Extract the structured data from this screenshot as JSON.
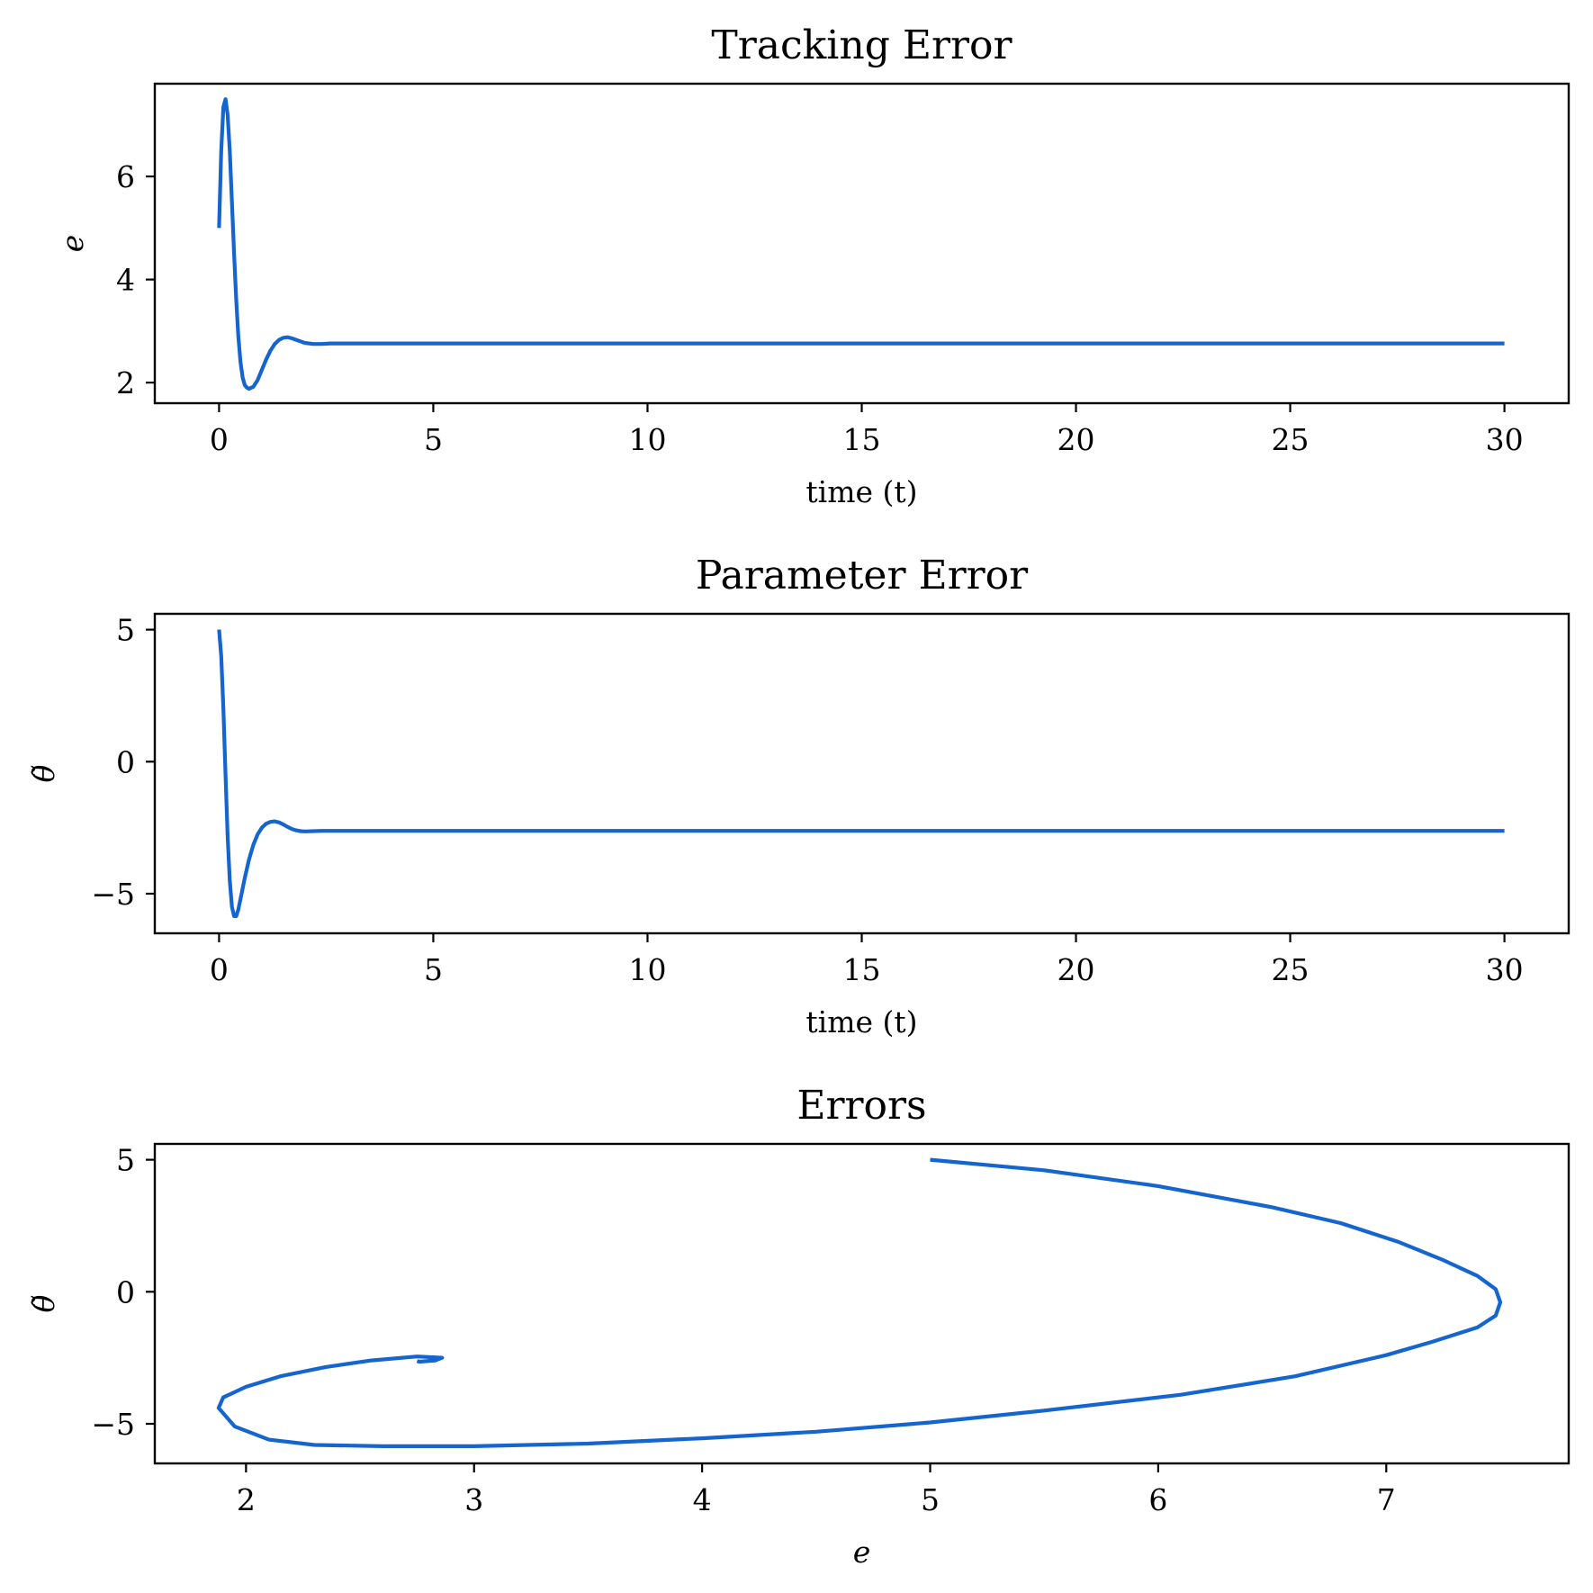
{
  "chart_data": [
    {
      "type": "line",
      "title": "Tracking Error",
      "xlabel": "time (t)",
      "ylabel": "e",
      "xlim": [
        -1.5,
        31.5
      ],
      "ylim": [
        1.6,
        7.8
      ],
      "xticks": [
        0,
        5,
        10,
        15,
        20,
        25,
        30
      ],
      "xtick_labels": [
        "0",
        "5",
        "10",
        "15",
        "20",
        "25",
        "30"
      ],
      "yticks": [
        2,
        4,
        6
      ],
      "ytick_labels": [
        "2",
        "4",
        "6"
      ],
      "grid": false,
      "series": [
        {
          "color": "#1565d0",
          "x": [
            0,
            0.05,
            0.1,
            0.15,
            0.2,
            0.25,
            0.3,
            0.35,
            0.4,
            0.45,
            0.5,
            0.55,
            0.6,
            0.65,
            0.7,
            0.8,
            0.9,
            1.0,
            1.1,
            1.2,
            1.3,
            1.4,
            1.5,
            1.6,
            1.7,
            1.8,
            1.9,
            2.0,
            2.2,
            2.4,
            2.6,
            2.8,
            3.0,
            4,
            5,
            6,
            7,
            8,
            9,
            10,
            12,
            14,
            16,
            18,
            20,
            22,
            24,
            26,
            28,
            30
          ],
          "y": [
            5.0,
            6.5,
            7.35,
            7.5,
            7.2,
            6.5,
            5.5,
            4.5,
            3.6,
            2.9,
            2.4,
            2.1,
            1.95,
            1.9,
            1.88,
            1.92,
            2.05,
            2.25,
            2.45,
            2.62,
            2.75,
            2.83,
            2.87,
            2.88,
            2.86,
            2.83,
            2.8,
            2.77,
            2.75,
            2.75,
            2.76,
            2.76,
            2.76,
            2.76,
            2.76,
            2.76,
            2.76,
            2.76,
            2.76,
            2.76,
            2.76,
            2.76,
            2.76,
            2.76,
            2.76,
            2.76,
            2.76,
            2.76,
            2.76,
            2.76
          ]
        }
      ]
    },
    {
      "type": "line",
      "title": "Parameter Error",
      "xlabel": "time (t)",
      "ylabel": "θ̃",
      "xlim": [
        -1.5,
        31.5
      ],
      "ylim": [
        -6.5,
        5.6
      ],
      "xticks": [
        0,
        5,
        10,
        15,
        20,
        25,
        30
      ],
      "xtick_labels": [
        "0",
        "5",
        "10",
        "15",
        "20",
        "25",
        "30"
      ],
      "yticks": [
        -5,
        0,
        5
      ],
      "ytick_labels": [
        "−5",
        "0",
        "5"
      ],
      "grid": false,
      "series": [
        {
          "color": "#1565d0",
          "x": [
            0,
            0.05,
            0.1,
            0.15,
            0.2,
            0.25,
            0.3,
            0.35,
            0.4,
            0.45,
            0.5,
            0.6,
            0.7,
            0.8,
            0.9,
            1.0,
            1.1,
            1.2,
            1.3,
            1.4,
            1.5,
            1.6,
            1.7,
            1.8,
            1.9,
            2.0,
            2.2,
            2.4,
            2.6,
            2.8,
            3.0,
            4,
            5,
            6,
            8,
            10,
            12,
            14,
            16,
            18,
            20,
            22,
            24,
            26,
            28,
            30
          ],
          "y": [
            5.0,
            4.0,
            2.0,
            -0.5,
            -2.8,
            -4.5,
            -5.5,
            -5.85,
            -5.85,
            -5.6,
            -5.2,
            -4.4,
            -3.7,
            -3.15,
            -2.75,
            -2.5,
            -2.35,
            -2.28,
            -2.26,
            -2.3,
            -2.38,
            -2.47,
            -2.55,
            -2.6,
            -2.63,
            -2.64,
            -2.63,
            -2.62,
            -2.62,
            -2.62,
            -2.62,
            -2.62,
            -2.62,
            -2.62,
            -2.62,
            -2.62,
            -2.62,
            -2.62,
            -2.62,
            -2.62,
            -2.62,
            -2.62,
            -2.62,
            -2.62,
            -2.62,
            -2.62
          ]
        }
      ]
    },
    {
      "type": "line",
      "title": "Errors",
      "xlabel": "e",
      "ylabel": "θ̃",
      "xlim": [
        1.6,
        7.8
      ],
      "ylim": [
        -6.5,
        5.6
      ],
      "xticks": [
        2,
        3,
        4,
        5,
        6,
        7
      ],
      "xtick_labels": [
        "2",
        "3",
        "4",
        "5",
        "6",
        "7"
      ],
      "yticks": [
        -5,
        0,
        5
      ],
      "ytick_labels": [
        "−5",
        "0",
        "5"
      ],
      "grid": false,
      "series": [
        {
          "color": "#1565d0",
          "x": [
            5.0,
            5.5,
            6.0,
            6.5,
            6.8,
            7.05,
            7.25,
            7.4,
            7.48,
            7.5,
            7.48,
            7.4,
            7.2,
            7.0,
            6.6,
            6.1,
            5.5,
            5.0,
            4.5,
            4.0,
            3.5,
            3.0,
            2.6,
            2.3,
            2.1,
            1.95,
            1.88,
            1.9,
            2.0,
            2.15,
            2.35,
            2.55,
            2.75,
            2.86,
            2.83,
            2.76,
            2.75
          ],
          "y": [
            5.0,
            4.6,
            4.0,
            3.2,
            2.6,
            1.9,
            1.2,
            0.6,
            0.1,
            -0.4,
            -0.9,
            -1.35,
            -1.9,
            -2.4,
            -3.2,
            -3.9,
            -4.5,
            -4.95,
            -5.3,
            -5.55,
            -5.75,
            -5.85,
            -5.85,
            -5.8,
            -5.6,
            -5.1,
            -4.4,
            -4.0,
            -3.6,
            -3.2,
            -2.85,
            -2.6,
            -2.45,
            -2.5,
            -2.6,
            -2.65,
            -2.62
          ]
        }
      ]
    }
  ]
}
